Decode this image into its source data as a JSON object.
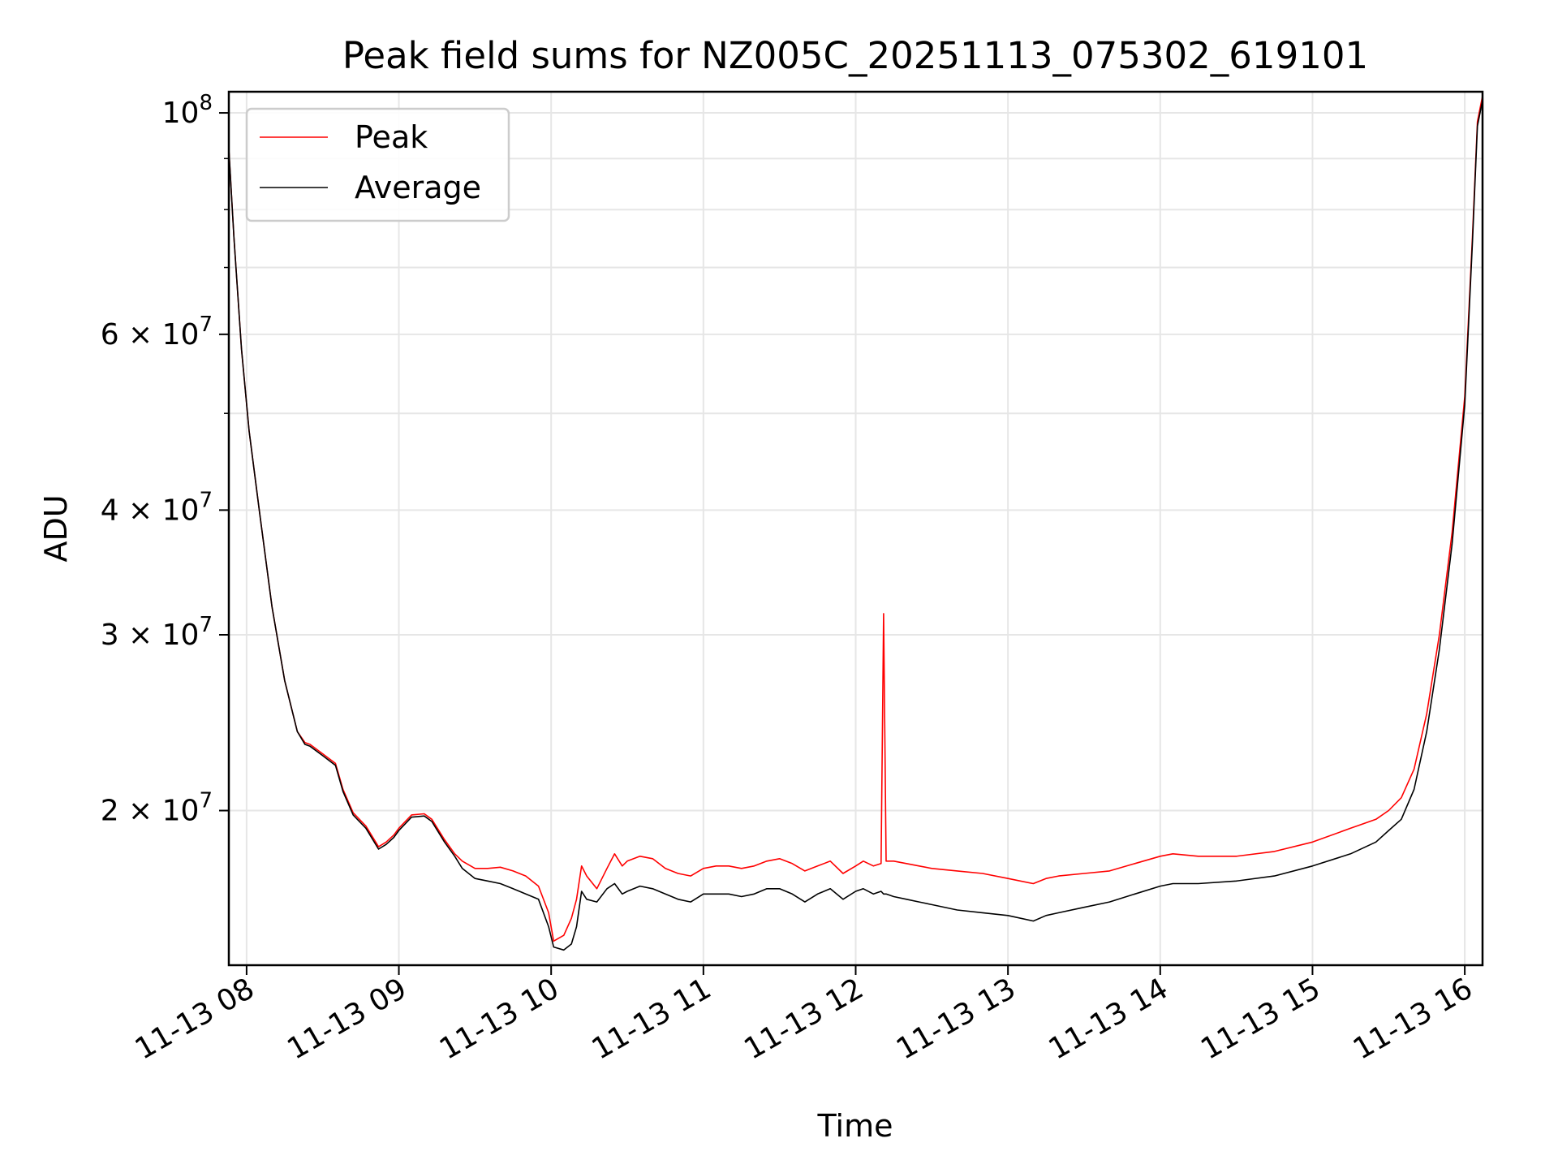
{
  "chart_data": {
    "type": "line",
    "title": "Peak field sums for NZ005C_20251113_075302_619101",
    "xlabel": "Time",
    "ylabel": "ADU",
    "y_scale": "log",
    "ylim": [
      14000000,
      105000000
    ],
    "xlim": [
      "2025-11-13 07:53",
      "2025-11-13 16:07"
    ],
    "grid": true,
    "legend_position": "top-left",
    "x_ticks": [
      {
        "value": "2025-11-13 08:00",
        "label": "11-13 08"
      },
      {
        "value": "2025-11-13 09:00",
        "label": "11-13 09"
      },
      {
        "value": "2025-11-13 10:00",
        "label": "11-13 10"
      },
      {
        "value": "2025-11-13 11:00",
        "label": "11-13 11"
      },
      {
        "value": "2025-11-13 12:00",
        "label": "11-13 12"
      },
      {
        "value": "2025-11-13 13:00",
        "label": "11-13 13"
      },
      {
        "value": "2025-11-13 14:00",
        "label": "11-13 14"
      },
      {
        "value": "2025-11-13 15:00",
        "label": "11-13 15"
      },
      {
        "value": "2025-11-13 16:00",
        "label": "11-13 16"
      }
    ],
    "y_ticks": [
      {
        "value": 20000000,
        "base": "2",
        "exp": "7"
      },
      {
        "value": 30000000,
        "base": "3",
        "exp": "7"
      },
      {
        "value": 40000000,
        "base": "4",
        "exp": "7"
      },
      {
        "value": 60000000,
        "base": "6",
        "exp": "7"
      },
      {
        "value": 100000000,
        "base": "10",
        "exp": "8"
      }
    ],
    "y_minor_ticks": [
      50000000,
      70000000,
      80000000,
      90000000
    ],
    "series": [
      {
        "name": "Peak",
        "color": "#ff0000",
        "x": [
          "2025-11-13 07:53",
          "2025-11-13 07:55",
          "2025-11-13 07:58",
          "2025-11-13 08:01",
          "2025-11-13 08:05",
          "2025-11-13 08:10",
          "2025-11-13 08:15",
          "2025-11-13 08:20",
          "2025-11-13 08:23",
          "2025-11-13 08:25",
          "2025-11-13 08:30",
          "2025-11-13 08:35",
          "2025-11-13 08:38",
          "2025-11-13 08:42",
          "2025-11-13 08:47",
          "2025-11-13 08:52",
          "2025-11-13 08:55",
          "2025-11-13 08:58",
          "2025-11-13 09:00",
          "2025-11-13 09:05",
          "2025-11-13 09:10",
          "2025-11-13 09:13",
          "2025-11-13 09:18",
          "2025-11-13 09:22",
          "2025-11-13 09:25",
          "2025-11-13 09:30",
          "2025-11-13 09:35",
          "2025-11-13 09:40",
          "2025-11-13 09:45",
          "2025-11-13 09:50",
          "2025-11-13 09:55",
          "2025-11-13 09:59",
          "2025-11-13 10:01",
          "2025-11-13 10:05",
          "2025-11-13 10:08",
          "2025-11-13 10:10",
          "2025-11-13 10:12",
          "2025-11-13 10:14",
          "2025-11-13 10:18",
          "2025-11-13 10:22",
          "2025-11-13 10:25",
          "2025-11-13 10:28",
          "2025-11-13 10:30",
          "2025-11-13 10:35",
          "2025-11-13 10:40",
          "2025-11-13 10:45",
          "2025-11-13 10:50",
          "2025-11-13 10:55",
          "2025-11-13 11:00",
          "2025-11-13 11:05",
          "2025-11-13 11:10",
          "2025-11-13 11:15",
          "2025-11-13 11:20",
          "2025-11-13 11:25",
          "2025-11-13 11:30",
          "2025-11-13 11:35",
          "2025-11-13 11:40",
          "2025-11-13 11:45",
          "2025-11-13 11:50",
          "2025-11-13 11:55",
          "2025-11-13 12:00",
          "2025-11-13 12:03",
          "2025-11-13 12:07",
          "2025-11-13 12:10",
          "2025-11-13 12:11",
          "2025-11-13 12:12",
          "2025-11-13 12:15",
          "2025-11-13 12:20",
          "2025-11-13 12:25",
          "2025-11-13 12:30",
          "2025-11-13 12:40",
          "2025-11-13 12:50",
          "2025-11-13 13:00",
          "2025-11-13 13:10",
          "2025-11-13 13:15",
          "2025-11-13 13:20",
          "2025-11-13 13:30",
          "2025-11-13 13:40",
          "2025-11-13 13:50",
          "2025-11-13 14:00",
          "2025-11-13 14:05",
          "2025-11-13 14:15",
          "2025-11-13 14:30",
          "2025-11-13 14:45",
          "2025-11-13 15:00",
          "2025-11-13 15:15",
          "2025-11-13 15:25",
          "2025-11-13 15:30",
          "2025-11-13 15:35",
          "2025-11-13 15:40",
          "2025-11-13 15:45",
          "2025-11-13 15:50",
          "2025-11-13 15:55",
          "2025-11-13 16:00",
          "2025-11-13 16:03",
          "2025-11-13 16:05",
          "2025-11-13 16:07"
        ],
        "y": [
          92000000,
          75000000,
          58000000,
          48000000,
          40000000,
          32000000,
          27000000,
          24000000,
          23400000,
          23300000,
          22800000,
          22300000,
          21000000,
          19900000,
          19300000,
          18400000,
          18600000,
          18900000,
          19200000,
          19800000,
          19850000,
          19600000,
          18700000,
          18100000,
          17800000,
          17500000,
          17500000,
          17550000,
          17400000,
          17200000,
          16800000,
          15800000,
          14800000,
          15000000,
          15600000,
          16300000,
          17600000,
          17200000,
          16700000,
          17500000,
          18100000,
          17600000,
          17800000,
          18000000,
          17900000,
          17500000,
          17300000,
          17200000,
          17500000,
          17600000,
          17600000,
          17500000,
          17600000,
          17800000,
          17900000,
          17700000,
          17400000,
          17600000,
          17800000,
          17300000,
          17600000,
          17800000,
          17600000,
          17700000,
          31500000,
          17800000,
          17800000,
          17700000,
          17600000,
          17500000,
          17400000,
          17300000,
          17100000,
          16900000,
          17100000,
          17200000,
          17300000,
          17400000,
          17700000,
          18000000,
          18100000,
          18000000,
          18000000,
          18200000,
          18600000,
          19200000,
          19600000,
          20000000,
          20600000,
          22000000,
          25000000,
          30000000,
          38000000,
          52000000,
          75000000,
          98000000,
          104000000
        ]
      },
      {
        "name": "Average",
        "color": "#000000",
        "x": [
          "2025-11-13 07:53",
          "2025-11-13 07:55",
          "2025-11-13 07:58",
          "2025-11-13 08:01",
          "2025-11-13 08:05",
          "2025-11-13 08:10",
          "2025-11-13 08:15",
          "2025-11-13 08:20",
          "2025-11-13 08:23",
          "2025-11-13 08:25",
          "2025-11-13 08:30",
          "2025-11-13 08:35",
          "2025-11-13 08:38",
          "2025-11-13 08:42",
          "2025-11-13 08:47",
          "2025-11-13 08:52",
          "2025-11-13 08:55",
          "2025-11-13 08:58",
          "2025-11-13 09:00",
          "2025-11-13 09:05",
          "2025-11-13 09:10",
          "2025-11-13 09:13",
          "2025-11-13 09:18",
          "2025-11-13 09:22",
          "2025-11-13 09:25",
          "2025-11-13 09:30",
          "2025-11-13 09:35",
          "2025-11-13 09:40",
          "2025-11-13 09:45",
          "2025-11-13 09:50",
          "2025-11-13 09:55",
          "2025-11-13 09:59",
          "2025-11-13 10:01",
          "2025-11-13 10:05",
          "2025-11-13 10:08",
          "2025-11-13 10:10",
          "2025-11-13 10:12",
          "2025-11-13 10:14",
          "2025-11-13 10:18",
          "2025-11-13 10:22",
          "2025-11-13 10:25",
          "2025-11-13 10:28",
          "2025-11-13 10:30",
          "2025-11-13 10:35",
          "2025-11-13 10:40",
          "2025-11-13 10:45",
          "2025-11-13 10:50",
          "2025-11-13 10:55",
          "2025-11-13 11:00",
          "2025-11-13 11:05",
          "2025-11-13 11:10",
          "2025-11-13 11:15",
          "2025-11-13 11:20",
          "2025-11-13 11:25",
          "2025-11-13 11:30",
          "2025-11-13 11:35",
          "2025-11-13 11:40",
          "2025-11-13 11:45",
          "2025-11-13 11:50",
          "2025-11-13 11:55",
          "2025-11-13 12:00",
          "2025-11-13 12:03",
          "2025-11-13 12:07",
          "2025-11-13 12:10",
          "2025-11-13 12:11",
          "2025-11-13 12:12",
          "2025-11-13 12:15",
          "2025-11-13 12:20",
          "2025-11-13 12:25",
          "2025-11-13 12:30",
          "2025-11-13 12:40",
          "2025-11-13 12:50",
          "2025-11-13 13:00",
          "2025-11-13 13:10",
          "2025-11-13 13:15",
          "2025-11-13 13:20",
          "2025-11-13 13:30",
          "2025-11-13 13:40",
          "2025-11-13 13:50",
          "2025-11-13 14:00",
          "2025-11-13 14:05",
          "2025-11-13 14:15",
          "2025-11-13 14:30",
          "2025-11-13 14:45",
          "2025-11-13 15:00",
          "2025-11-13 15:15",
          "2025-11-13 15:25",
          "2025-11-13 15:30",
          "2025-11-13 15:35",
          "2025-11-13 15:40",
          "2025-11-13 15:45",
          "2025-11-13 15:50",
          "2025-11-13 15:55",
          "2025-11-13 16:00",
          "2025-11-13 16:03",
          "2025-11-13 16:05",
          "2025-11-13 16:07"
        ],
        "y": [
          92000000,
          75000000,
          58000000,
          48000000,
          40000000,
          32000000,
          27000000,
          24000000,
          23300000,
          23200000,
          22700000,
          22200000,
          20900000,
          19800000,
          19200000,
          18300000,
          18500000,
          18800000,
          19100000,
          19700000,
          19750000,
          19500000,
          18600000,
          18000000,
          17500000,
          17100000,
          17000000,
          16900000,
          16700000,
          16500000,
          16300000,
          15300000,
          14600000,
          14500000,
          14700000,
          15300000,
          16600000,
          16300000,
          16200000,
          16700000,
          16900000,
          16500000,
          16600000,
          16800000,
          16700000,
          16500000,
          16300000,
          16200000,
          16500000,
          16500000,
          16500000,
          16400000,
          16500000,
          16700000,
          16700000,
          16500000,
          16200000,
          16500000,
          16700000,
          16300000,
          16600000,
          16700000,
          16500000,
          16600000,
          16500000,
          16500000,
          16400000,
          16300000,
          16200000,
          16100000,
          15900000,
          15800000,
          15700000,
          15500000,
          15700000,
          15800000,
          16000000,
          16200000,
          16500000,
          16800000,
          16900000,
          16900000,
          17000000,
          17200000,
          17600000,
          18100000,
          18600000,
          19100000,
          19600000,
          21000000,
          24000000,
          29000000,
          37000000,
          51000000,
          74000000,
          97000000,
          103000000
        ]
      }
    ]
  }
}
